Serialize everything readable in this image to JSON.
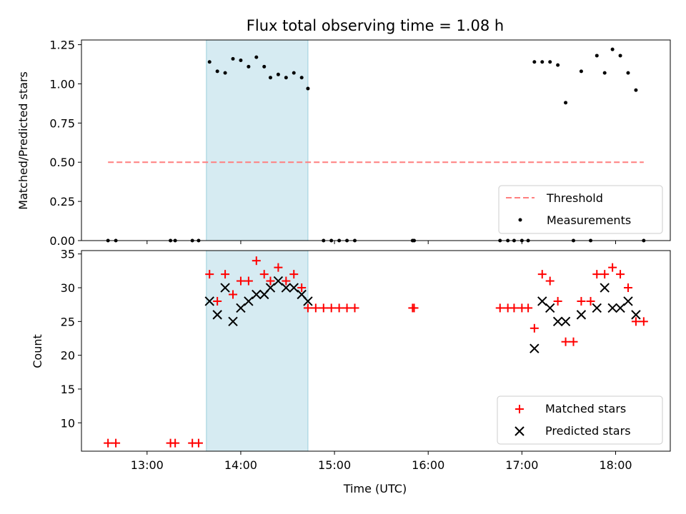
{
  "chart_data": [
    {
      "type": "scatter",
      "title": "Flux total observing time = 1.08 h",
      "xlabel": "",
      "ylabel": "Matched/Predicted stars",
      "ylim": [
        0,
        1.28
      ],
      "yticks": [
        "0.00",
        "0.25",
        "0.50",
        "0.75",
        "1.00",
        "1.25"
      ],
      "xlim": [
        "12:18",
        "18:35"
      ],
      "shaded_interval": [
        "13:38",
        "14:43"
      ],
      "shade_color": "#add8e6",
      "threshold": {
        "name": "Threshold",
        "y": 0.5,
        "x_start": "12:35",
        "x_end": "18:18",
        "color": "#ff7f7f"
      },
      "series": [
        {
          "name": "Measurements",
          "color": "#000000",
          "points": [
            [
              "12:35",
              0
            ],
            [
              "12:40",
              0
            ],
            [
              "13:15",
              0
            ],
            [
              "13:18",
              0
            ],
            [
              "13:29",
              0
            ],
            [
              "13:33",
              0
            ],
            [
              "13:40",
              1.14
            ],
            [
              "13:45",
              1.08
            ],
            [
              "13:50",
              1.07
            ],
            [
              "13:55",
              1.16
            ],
            [
              "14:00",
              1.15
            ],
            [
              "14:05",
              1.11
            ],
            [
              "14:10",
              1.17
            ],
            [
              "14:15",
              1.11
            ],
            [
              "14:19",
              1.04
            ],
            [
              "14:24",
              1.06
            ],
            [
              "14:29",
              1.04
            ],
            [
              "14:34",
              1.07
            ],
            [
              "14:39",
              1.04
            ],
            [
              "14:43",
              0.97
            ],
            [
              "14:53",
              0
            ],
            [
              "14:58",
              0
            ],
            [
              "15:03",
              0
            ],
            [
              "15:08",
              0
            ],
            [
              "15:13",
              0
            ],
            [
              "15:50",
              0
            ],
            [
              "15:51",
              0
            ],
            [
              "16:46",
              0
            ],
            [
              "16:51",
              0
            ],
            [
              "16:55",
              0
            ],
            [
              "17:00",
              0
            ],
            [
              "17:04",
              0
            ],
            [
              "17:08",
              1.14
            ],
            [
              "17:13",
              1.14
            ],
            [
              "17:18",
              1.14
            ],
            [
              "17:23",
              1.12
            ],
            [
              "17:28",
              0.88
            ],
            [
              "17:33",
              0
            ],
            [
              "17:38",
              1.08
            ],
            [
              "17:44",
              0
            ],
            [
              "17:48",
              1.18
            ],
            [
              "17:53",
              1.07
            ],
            [
              "17:58",
              1.22
            ],
            [
              "18:03",
              1.18
            ],
            [
              "18:08",
              1.07
            ],
            [
              "18:13",
              0.96
            ],
            [
              "18:18",
              0
            ]
          ]
        }
      ],
      "legend": {
        "placement": "lower right",
        "entries": [
          "Threshold",
          "Measurements"
        ]
      }
    },
    {
      "type": "scatter",
      "title": "",
      "xlabel": "Time (UTC)",
      "ylabel": "Count",
      "ylim": [
        5.8,
        35.5
      ],
      "yticks": [
        "10",
        "15",
        "20",
        "25",
        "30",
        "35"
      ],
      "xlim": [
        "12:18",
        "18:35"
      ],
      "xticks": [
        "13:00",
        "14:00",
        "15:00",
        "16:00",
        "17:00",
        "18:00"
      ],
      "shaded_interval": [
        "13:38",
        "14:43"
      ],
      "shade_color": "#add8e6",
      "series": [
        {
          "name": "Matched stars",
          "marker": "+",
          "color": "#ff0000",
          "points": [
            [
              "12:35",
              7
            ],
            [
              "12:40",
              7
            ],
            [
              "13:15",
              7
            ],
            [
              "13:18",
              7
            ],
            [
              "13:29",
              7
            ],
            [
              "13:33",
              7
            ],
            [
              "13:40",
              32
            ],
            [
              "13:45",
              28
            ],
            [
              "13:50",
              32
            ],
            [
              "13:55",
              29
            ],
            [
              "14:00",
              31
            ],
            [
              "14:05",
              31
            ],
            [
              "14:10",
              34
            ],
            [
              "14:15",
              32
            ],
            [
              "14:19",
              31
            ],
            [
              "14:24",
              33
            ],
            [
              "14:29",
              31
            ],
            [
              "14:34",
              32
            ],
            [
              "14:39",
              30
            ],
            [
              "14:43",
              27
            ],
            [
              "14:48",
              27
            ],
            [
              "14:53",
              27
            ],
            [
              "14:58",
              27
            ],
            [
              "15:03",
              27
            ],
            [
              "15:08",
              27
            ],
            [
              "15:13",
              27
            ],
            [
              "15:50",
              27
            ],
            [
              "15:51",
              27
            ],
            [
              "16:46",
              27
            ],
            [
              "16:51",
              27
            ],
            [
              "16:55",
              27
            ],
            [
              "17:00",
              27
            ],
            [
              "17:04",
              27
            ],
            [
              "17:08",
              24
            ],
            [
              "17:13",
              32
            ],
            [
              "17:18",
              31
            ],
            [
              "17:23",
              28
            ],
            [
              "17:28",
              22
            ],
            [
              "17:33",
              22
            ],
            [
              "17:38",
              28
            ],
            [
              "17:44",
              28
            ],
            [
              "17:48",
              32
            ],
            [
              "17:53",
              32
            ],
            [
              "17:58",
              33
            ],
            [
              "18:03",
              32
            ],
            [
              "18:08",
              30
            ],
            [
              "18:13",
              25
            ],
            [
              "18:18",
              25
            ]
          ]
        },
        {
          "name": "Predicted stars",
          "marker": "x",
          "color": "#000000",
          "points": [
            [
              "13:40",
              28
            ],
            [
              "13:45",
              26
            ],
            [
              "13:50",
              30
            ],
            [
              "13:55",
              25
            ],
            [
              "14:00",
              27
            ],
            [
              "14:05",
              28
            ],
            [
              "14:10",
              29
            ],
            [
              "14:15",
              29
            ],
            [
              "14:19",
              30
            ],
            [
              "14:24",
              31
            ],
            [
              "14:29",
              30
            ],
            [
              "14:34",
              30
            ],
            [
              "14:39",
              29
            ],
            [
              "14:43",
              28
            ],
            [
              "17:08",
              21
            ],
            [
              "17:13",
              28
            ],
            [
              "17:18",
              27
            ],
            [
              "17:23",
              25
            ],
            [
              "17:28",
              25
            ],
            [
              "17:38",
              26
            ],
            [
              "17:48",
              27
            ],
            [
              "17:53",
              30
            ],
            [
              "17:58",
              27
            ],
            [
              "18:03",
              27
            ],
            [
              "18:08",
              28
            ],
            [
              "18:13",
              26
            ]
          ]
        }
      ],
      "legend": {
        "placement": "lower right",
        "entries": [
          "Matched stars",
          "Predicted stars"
        ]
      }
    }
  ]
}
